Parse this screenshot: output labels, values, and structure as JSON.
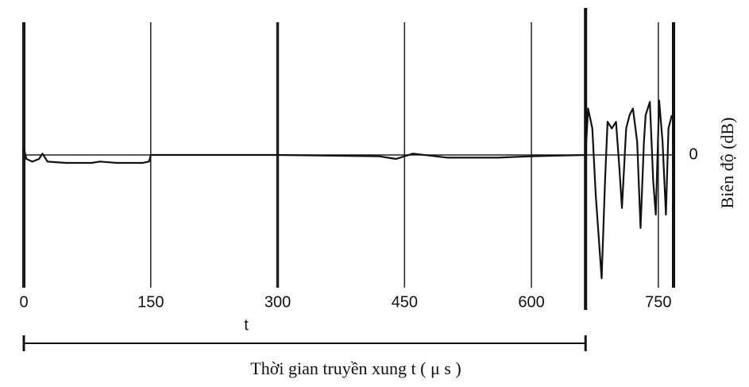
{
  "chart_data": {
    "type": "line",
    "x_label": "t",
    "title": "Thời gian truyền xung t ( μ s )",
    "y_label": "Biên độ (dB)",
    "x": [
      0,
      3,
      10,
      18,
      22,
      28,
      50,
      80,
      90,
      110,
      140,
      148,
      150,
      200,
      300,
      420,
      440,
      460,
      500,
      560,
      600,
      664,
      667,
      672,
      676,
      683,
      687,
      690,
      695,
      700,
      704,
      707,
      712,
      716,
      720,
      725,
      729,
      733,
      735,
      740,
      744,
      747,
      751,
      755,
      759,
      762,
      766
    ],
    "series": [
      {
        "color": "#111111",
        "values": [
          0.05,
          -0.03,
          -0.05,
          -0.03,
          0.01,
          -0.05,
          -0.06,
          -0.06,
          -0.05,
          -0.06,
          -0.06,
          -0.05,
          0.0,
          0.0,
          0.0,
          -0.01,
          -0.03,
          0.01,
          -0.02,
          -0.02,
          -0.01,
          0.0,
          0.35,
          0.2,
          -0.3,
          -0.93,
          -0.2,
          0.25,
          0.2,
          0.25,
          -0.1,
          -0.4,
          0.2,
          0.3,
          0.35,
          0.1,
          -0.55,
          0.1,
          0.3,
          0.4,
          -0.2,
          -0.45,
          0.41,
          0.1,
          -0.45,
          0.2,
          0.3
        ]
      }
    ],
    "xlim": [
      0,
      768
    ],
    "xticks": [
      0,
      150,
      300,
      450,
      600,
      750
    ],
    "ylim": [
      -1,
      1
    ],
    "yticks": [
      0
    ],
    "arrival": 664,
    "grid": true
  }
}
